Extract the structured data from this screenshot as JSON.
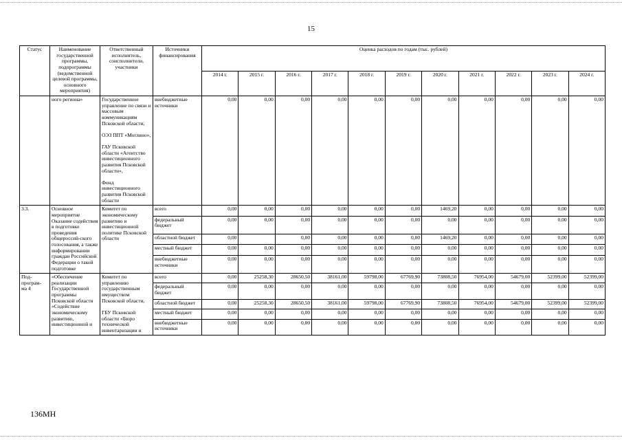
{
  "page": {
    "number": "15",
    "footer_code": "136МН"
  },
  "table": {
    "headers": {
      "status": "Статус",
      "name": "Наименование государственной программы, подпрограммы (ведомственной целевой программы, основного мероприятия)",
      "executor": "Ответственный исполнитель, соисполнители, участники",
      "source": "Источники финансирования",
      "estimate": "Оценка расходов по годам (тыс. рублей)"
    },
    "years": [
      "2014 г.",
      "2015 г.",
      "2016 г.",
      "2017 г.",
      "2018 г.",
      "2019 г.",
      "2020 г.",
      "2021 г.",
      "2022 г.",
      "2023 г.",
      "2024 г."
    ],
    "groups": [
      {
        "status": "",
        "name": "ного региона»",
        "executor": "Государственное управление по связи и массовым коммуникациям Псковской области,\n\nОЭЗ ППТ «Моглино»,\n\nГАУ Псковской области «Агентство инвестиционного развития Псковской области»,\n\nФонд инвестиционного развития Псковской области",
        "rows": [
          {
            "source": "внебюджетные источники",
            "values": [
              "0,00",
              "0,00",
              "0,00",
              "0,00",
              "0,00",
              "0,00",
              "0,00",
              "0,00",
              "0,00",
              "0,00",
              "0,00"
            ]
          }
        ]
      },
      {
        "status": "3.3.",
        "name": "Основное мероприятие\nОказание содействия в подготовке проведения общероссий-ского голосования, а также информировании граждан Российской Федерации о такой подготовке",
        "executor": "Комитет по экономическому развитию и инвестиционной политике Псковской области",
        "rows": [
          {
            "source": "всего",
            "values": [
              "0,00",
              "0,00",
              "0,00",
              "0,00",
              "0,00",
              "0,00",
              "1469,20",
              "0,00",
              "0,00",
              "0,00",
              "0,00"
            ]
          },
          {
            "source": "федеральный бюджет",
            "values": [
              "0,00",
              "0,00",
              "0,00",
              "0,00",
              "0,00",
              "0,00",
              "0,00",
              "0,00",
              "0,00",
              "0,00",
              "0,00"
            ]
          },
          {
            "source": "областной бюджет",
            "values": [
              "0,00",
              "",
              "0,00",
              "0,00",
              "0,00",
              "0,00",
              "1469,20",
              "0,00",
              "0,00",
              "0,00",
              "0,00"
            ]
          },
          {
            "source": "местный бюджет",
            "values": [
              "0,00",
              "0,00",
              "0,00",
              "0,00",
              "0,00",
              "0,00",
              "0,00",
              "0,00",
              "0,00",
              "0,00",
              "0,00"
            ]
          },
          {
            "source": "внебюджетные источники",
            "values": [
              "0,00",
              "0,00",
              "0,00",
              "0,00",
              "0,00",
              "0,00",
              "0,00",
              "0,00",
              "0,00",
              "0,00",
              "0,00"
            ]
          }
        ]
      },
      {
        "status": "Под-\nпрограм-\nма 4",
        "name": "«Обеспечение реализации Государственной программы Псковской области «Содействие экономическому развитию, инвестиционной и",
        "executor": "Комитет по управлению государственным имуществом Псковской области,\n\nГБУ Псковской области «Бюро технической инвентаризации и",
        "rows": [
          {
            "source": "всего",
            "values": [
              "0,00",
              "25258,30",
              "28650,50",
              "38161,00",
              "59798,00",
              "67769,90",
              "73808,50",
              "76954,00",
              "54679,00",
              "52399,00",
              "52399,00"
            ]
          },
          {
            "source": "федеральный бюджет",
            "values": [
              "0,00",
              "0,00",
              "0,00",
              "0,00",
              "0,00",
              "0,00",
              "0,00",
              "0,00",
              "0,00",
              "0,00",
              "0,00"
            ]
          },
          {
            "source": "областной бюджет",
            "values": [
              "0,00",
              "25258,30",
              "28650,50",
              "38161,00",
              "59798,00",
              "67769,90",
              "73808,50",
              "76954,00",
              "54679,00",
              "52399,00",
              "52399,00"
            ]
          },
          {
            "source": "местный бюджет",
            "values": [
              "0,00",
              "0,00",
              "0,00",
              "0,00",
              "0,00",
              "0,00",
              "0,00",
              "0,00",
              "0,00",
              "0,00",
              "0,00"
            ]
          },
          {
            "source": "внебюджетные источники",
            "values": [
              "0,00",
              "0,00",
              "0,00",
              "0,00",
              "0,00",
              "0,00",
              "0,00",
              "0,00",
              "0,00",
              "0,00",
              "0,00"
            ]
          }
        ]
      }
    ]
  }
}
